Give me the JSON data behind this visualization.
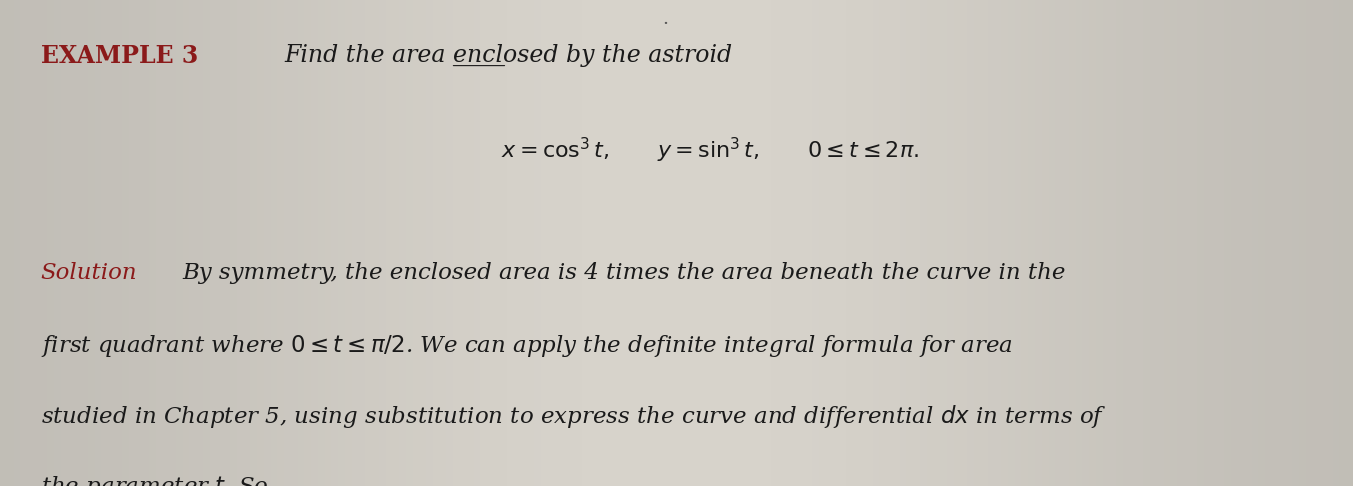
{
  "background_color": "#c8c4bc",
  "center_color": "#d8d4cc",
  "title_color": "#8b1a1a",
  "solution_color": "#8b1a1a",
  "body_color": "#1a1a1a",
  "example_label": "EXAMPLE 3",
  "title_text": "Find the area enclosed by the astroid",
  "equation_line": "$x = \\cos^3 t, \\qquad y = \\sin^3 t, \\qquad 0 \\leq t \\leq 2\\pi.$",
  "solution_label": "Solution",
  "body_line1": "By symmetry, the enclosed area is 4 times the area beneath the curve in the",
  "body_line2": "first quadrant where $0 \\leq t \\leq \\pi/2$. We can apply the definite integral formula for area",
  "body_line3": "studied in Chapter 5, using substitution to express the curve and differential $dx$ in terms of",
  "body_line4": "the parameter $t$. So,",
  "title_fontsize": 17,
  "example_fontsize": 17,
  "equation_fontsize": 16,
  "body_fontsize": 16.5,
  "solution_fontsize": 16.5
}
